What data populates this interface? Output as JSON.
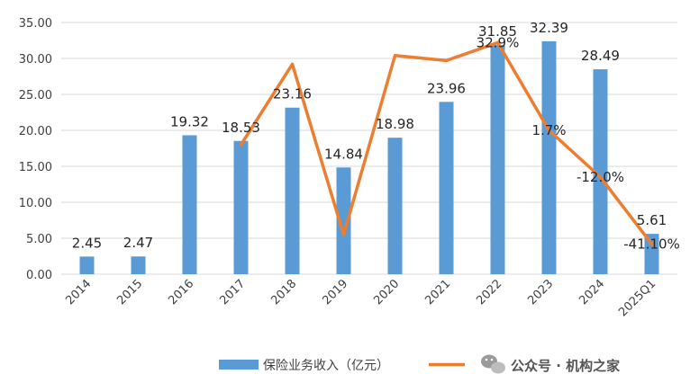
{
  "chart_data": {
    "type": "bar",
    "title": "",
    "xlabel": "",
    "ylabel": "",
    "ylim": [
      0,
      35
    ],
    "yticks": [
      "0.00",
      "5.00",
      "10.00",
      "15.00",
      "20.00",
      "25.00",
      "30.00",
      "35.00"
    ],
    "categories": [
      "2014",
      "2015",
      "2016",
      "2017",
      "2018",
      "2019",
      "2020",
      "2021",
      "2022",
      "2023",
      "2024",
      "2025Q1"
    ],
    "series": [
      {
        "name": "保险业务收入（亿元）",
        "type": "bar",
        "color": "#5B9BD5",
        "values": [
          2.45,
          2.47,
          19.32,
          18.53,
          23.16,
          14.84,
          18.98,
          23.96,
          31.85,
          32.39,
          28.49,
          5.61
        ],
        "labels": [
          "2.45",
          "2.47",
          "19.32",
          "18.53",
          "23.16",
          "14.84",
          "18.98",
          "23.96",
          "31.85",
          "32.39",
          "28.49",
          "5.61"
        ]
      },
      {
        "name": "",
        "type": "line",
        "color": "#ED7D31",
        "values": [
          null,
          null,
          null,
          18.0,
          29.2,
          5.5,
          30.4,
          29.7,
          32.2,
          20.0,
          13.5,
          4.2
        ],
        "labels": [
          "",
          "",
          "",
          "",
          "",
          "",
          "",
          "",
          "32.9%",
          "1.7%",
          "-12.0%",
          "-41.10%"
        ]
      }
    ],
    "legend": "bottom",
    "grid": true
  },
  "watermark": {
    "icon": "wechat-icon",
    "text": "公众号 · 机构之家"
  }
}
